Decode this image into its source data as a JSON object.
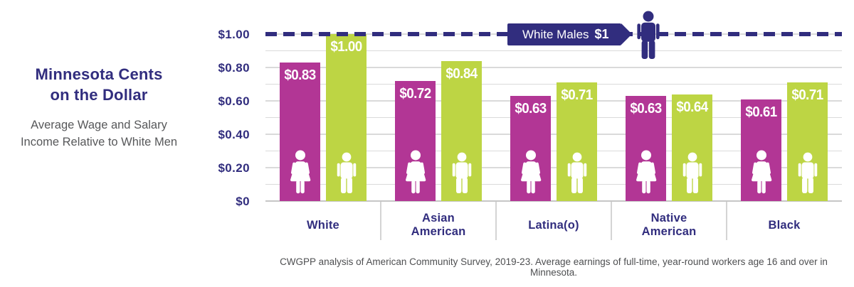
{
  "page": {
    "background": "#ffffff"
  },
  "header": {
    "title_line1": "Minnesota Cents",
    "title_line2": "on the Dollar",
    "subtitle_line1": "Average Wage and Salary",
    "subtitle_line2": "Income Relative to White Men"
  },
  "colors": {
    "women_bar": "#b23695",
    "men_bar": "#bdd544",
    "navy": "#312d7e",
    "gridline": "#dadada",
    "baseline_axis": "#c6c6c6",
    "separator": "#d4d4d4",
    "bar_label_text": "#ffffff",
    "subtitle_text": "#57585a",
    "footnote_text": "#4e4f51"
  },
  "chart_data": {
    "type": "bar",
    "title": "Minnesota Cents on the Dollar",
    "subtitle": "Average Wage and Salary Income Relative to White Men",
    "ylim": [
      0,
      1.0
    ],
    "gridline_step": 0.1,
    "grid": true,
    "y_axis": {
      "ticks": [
        {
          "label": "$1.00",
          "value": 1.0
        },
        {
          "label": "$0.80",
          "value": 0.8
        },
        {
          "label": "$0.60",
          "value": 0.6
        },
        {
          "label": "$0.40",
          "value": 0.4
        },
        {
          "label": "$0.20",
          "value": 0.2
        },
        {
          "label": "$0",
          "value": 0.0
        }
      ]
    },
    "categories": [
      {
        "id": "white",
        "label_lines": [
          "White"
        ]
      },
      {
        "id": "asian-american",
        "label_lines": [
          "Asian",
          "American"
        ]
      },
      {
        "id": "latina-o",
        "label_lines": [
          "Latina(o)"
        ]
      },
      {
        "id": "native-american",
        "label_lines": [
          "Native",
          "American"
        ]
      },
      {
        "id": "black",
        "label_lines": [
          "Black"
        ]
      }
    ],
    "series": [
      {
        "name": "Women",
        "icon": "female-figure-icon",
        "color": "#b23695",
        "values": [
          0.83,
          0.72,
          0.63,
          0.63,
          0.61
        ],
        "labels": [
          "$0.83",
          "$0.72",
          "$0.63",
          "$0.63",
          "$0.61"
        ]
      },
      {
        "name": "Men",
        "icon": "male-figure-icon",
        "color": "#bdd544",
        "values": [
          1.0,
          0.84,
          0.71,
          0.64,
          0.71
        ],
        "labels": [
          "$1.00",
          "$0.84",
          "$0.71",
          "$0.64",
          "$0.71"
        ]
      }
    ],
    "reference_line": {
      "value": 1.0,
      "label": "White Males",
      "value_label": "$1",
      "style": "dashed",
      "color": "#312d7e",
      "icon": "male-figure-icon"
    },
    "footnote": "CWGPP analysis of American Community Survey, 2019-23. Average earnings of full-time, year-round workers age 16 and over in Minnesota."
  }
}
